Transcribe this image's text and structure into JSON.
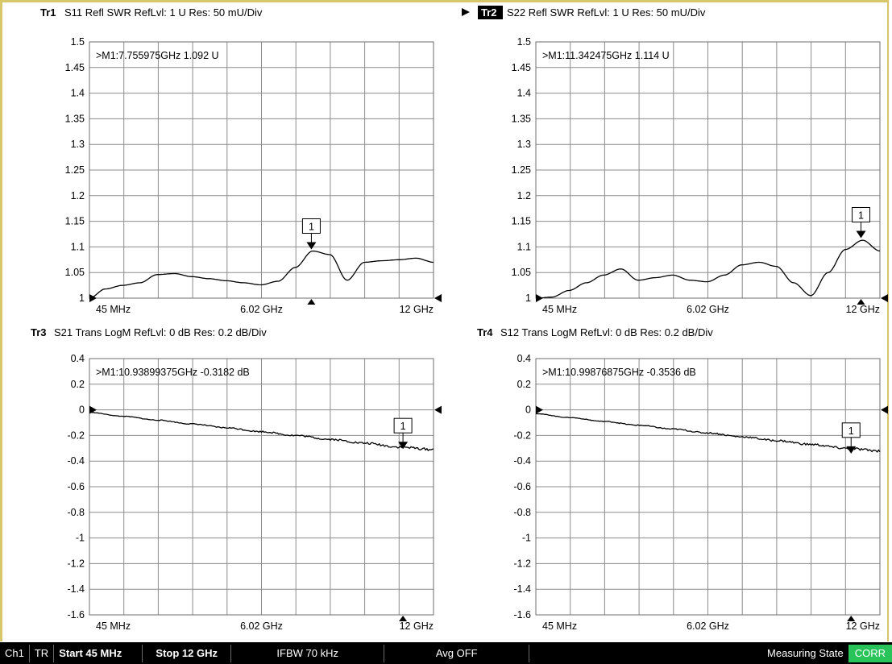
{
  "traces": [
    {
      "name": "Tr1",
      "active": false,
      "title": "S11 Refl SWR RefLvl: 1  U Res: 50 mU/Div",
      "marker_readout": ">M1:7.755975GHz  1.092  U",
      "marker_label": "1",
      "x_labels": [
        "45 MHz",
        "6.02 GHz",
        "12 GHz"
      ]
    },
    {
      "name": "Tr2",
      "active": true,
      "title": "S22 Refl SWR RefLvl: 1  U Res: 50 mU/Div",
      "marker_readout": ">M1:11.342475GHz  1.114  U",
      "marker_label": "1",
      "x_labels": [
        "45 MHz",
        "6.02 GHz",
        "12 GHz"
      ]
    },
    {
      "name": "Tr3",
      "active": false,
      "title": "S21 Trans LogM RefLvl: 0  dB Res: 0.2  dB/Div",
      "marker_readout": ">M1:10.93899375GHz  -0.3182  dB",
      "marker_label": "1",
      "x_labels": [
        "45 MHz",
        "6.02 GHz",
        "12 GHz"
      ]
    },
    {
      "name": "Tr4",
      "active": false,
      "title": "S12 Trans LogM RefLvl: 0  dB Res: 0.2  dB/Div",
      "marker_readout": ">M1:10.99876875GHz  -0.3536  dB",
      "marker_label": "1",
      "x_labels": [
        "45 MHz",
        "6.02 GHz",
        "12 GHz"
      ]
    }
  ],
  "status_bar": {
    "channel": "Ch1",
    "mode": "TR",
    "start": "Start 45 MHz",
    "stop": "Stop 12 GHz",
    "ifbw": "IFBW 70 kHz",
    "avg": "Avg OFF",
    "state": "Measuring State",
    "corr": "CORR"
  },
  "colors": {
    "frame_border": "#d8c66a",
    "grid": "#8c8c8c",
    "trace": "#000000",
    "corr_badge": "#28c45a",
    "statusbar_bg": "#000000"
  },
  "chart_data": [
    {
      "type": "line",
      "trace": "Tr1",
      "x_unit": "GHz",
      "y_unit": "U",
      "xlim": [
        0.045,
        12
      ],
      "ylim": [
        1,
        1.5
      ],
      "y_ticks": [
        "1.5",
        "1.45",
        "1.4",
        "1.35",
        "1.3",
        "1.25",
        "1.2",
        "1.15",
        "1.1",
        "1.05",
        "1"
      ],
      "x": [
        0.045,
        0.6,
        1.2,
        1.8,
        2.4,
        3.0,
        3.6,
        4.2,
        4.8,
        5.4,
        6.0,
        6.6,
        7.2,
        7.8,
        8.4,
        9.0,
        9.6,
        10.2,
        10.8,
        11.4,
        12.0
      ],
      "y": [
        1.0,
        1.018,
        1.025,
        1.03,
        1.046,
        1.048,
        1.042,
        1.038,
        1.034,
        1.03,
        1.026,
        1.033,
        1.06,
        1.092,
        1.085,
        1.035,
        1.07,
        1.073,
        1.075,
        1.078,
        1.07
      ],
      "marker": {
        "x": 7.755975,
        "y": 1.092
      }
    },
    {
      "type": "line",
      "trace": "Tr2",
      "x_unit": "GHz",
      "y_unit": "U",
      "xlim": [
        0.045,
        12
      ],
      "ylim": [
        1,
        1.5
      ],
      "y_ticks": [
        "1.5",
        "1.45",
        "1.4",
        "1.35",
        "1.3",
        "1.25",
        "1.2",
        "1.15",
        "1.1",
        "1.05",
        "1"
      ],
      "x": [
        0.045,
        0.6,
        1.2,
        1.8,
        2.4,
        3.0,
        3.6,
        4.2,
        4.8,
        5.4,
        6.0,
        6.6,
        7.2,
        7.8,
        8.4,
        9.0,
        9.6,
        10.2,
        10.8,
        11.4,
        12.0
      ],
      "y": [
        1.0,
        1.002,
        1.015,
        1.03,
        1.045,
        1.057,
        1.035,
        1.04,
        1.045,
        1.035,
        1.032,
        1.045,
        1.065,
        1.07,
        1.062,
        1.03,
        1.005,
        1.05,
        1.095,
        1.113,
        1.092
      ],
      "marker": {
        "x": 11.342475,
        "y": 1.114
      }
    },
    {
      "type": "line",
      "trace": "Tr3",
      "x_unit": "GHz",
      "y_unit": "dB",
      "xlim": [
        0.045,
        12
      ],
      "ylim": [
        -1.6,
        0.4
      ],
      "y_ticks": [
        "0.4",
        "0.2",
        "0",
        "-0.2",
        "-0.4",
        "-0.6",
        "-0.8",
        "-1",
        "-1.2",
        "-1.4",
        "-1.6"
      ],
      "x": [
        0.045,
        1.2,
        2.4,
        3.6,
        4.8,
        6.0,
        7.2,
        8.4,
        9.6,
        10.8,
        12.0
      ],
      "y": [
        -0.02,
        -0.05,
        -0.08,
        -0.11,
        -0.14,
        -0.17,
        -0.2,
        -0.23,
        -0.26,
        -0.29,
        -0.31
      ],
      "marker": {
        "x": 10.93899375,
        "y": -0.3182
      }
    },
    {
      "type": "line",
      "trace": "Tr4",
      "x_unit": "GHz",
      "y_unit": "dB",
      "xlim": [
        0.045,
        12
      ],
      "ylim": [
        -1.6,
        0.4
      ],
      "y_ticks": [
        "0.4",
        "0.2",
        "0",
        "-0.2",
        "-0.4",
        "-0.6",
        "-0.8",
        "-1",
        "-1.2",
        "-1.4",
        "-1.6"
      ],
      "x": [
        0.045,
        1.2,
        2.4,
        3.6,
        4.8,
        6.0,
        7.2,
        8.4,
        9.6,
        10.8,
        12.0
      ],
      "y": [
        -0.03,
        -0.06,
        -0.09,
        -0.12,
        -0.15,
        -0.18,
        -0.21,
        -0.24,
        -0.27,
        -0.3,
        -0.32
      ],
      "marker": {
        "x": 10.99876875,
        "y": -0.3536
      }
    }
  ]
}
